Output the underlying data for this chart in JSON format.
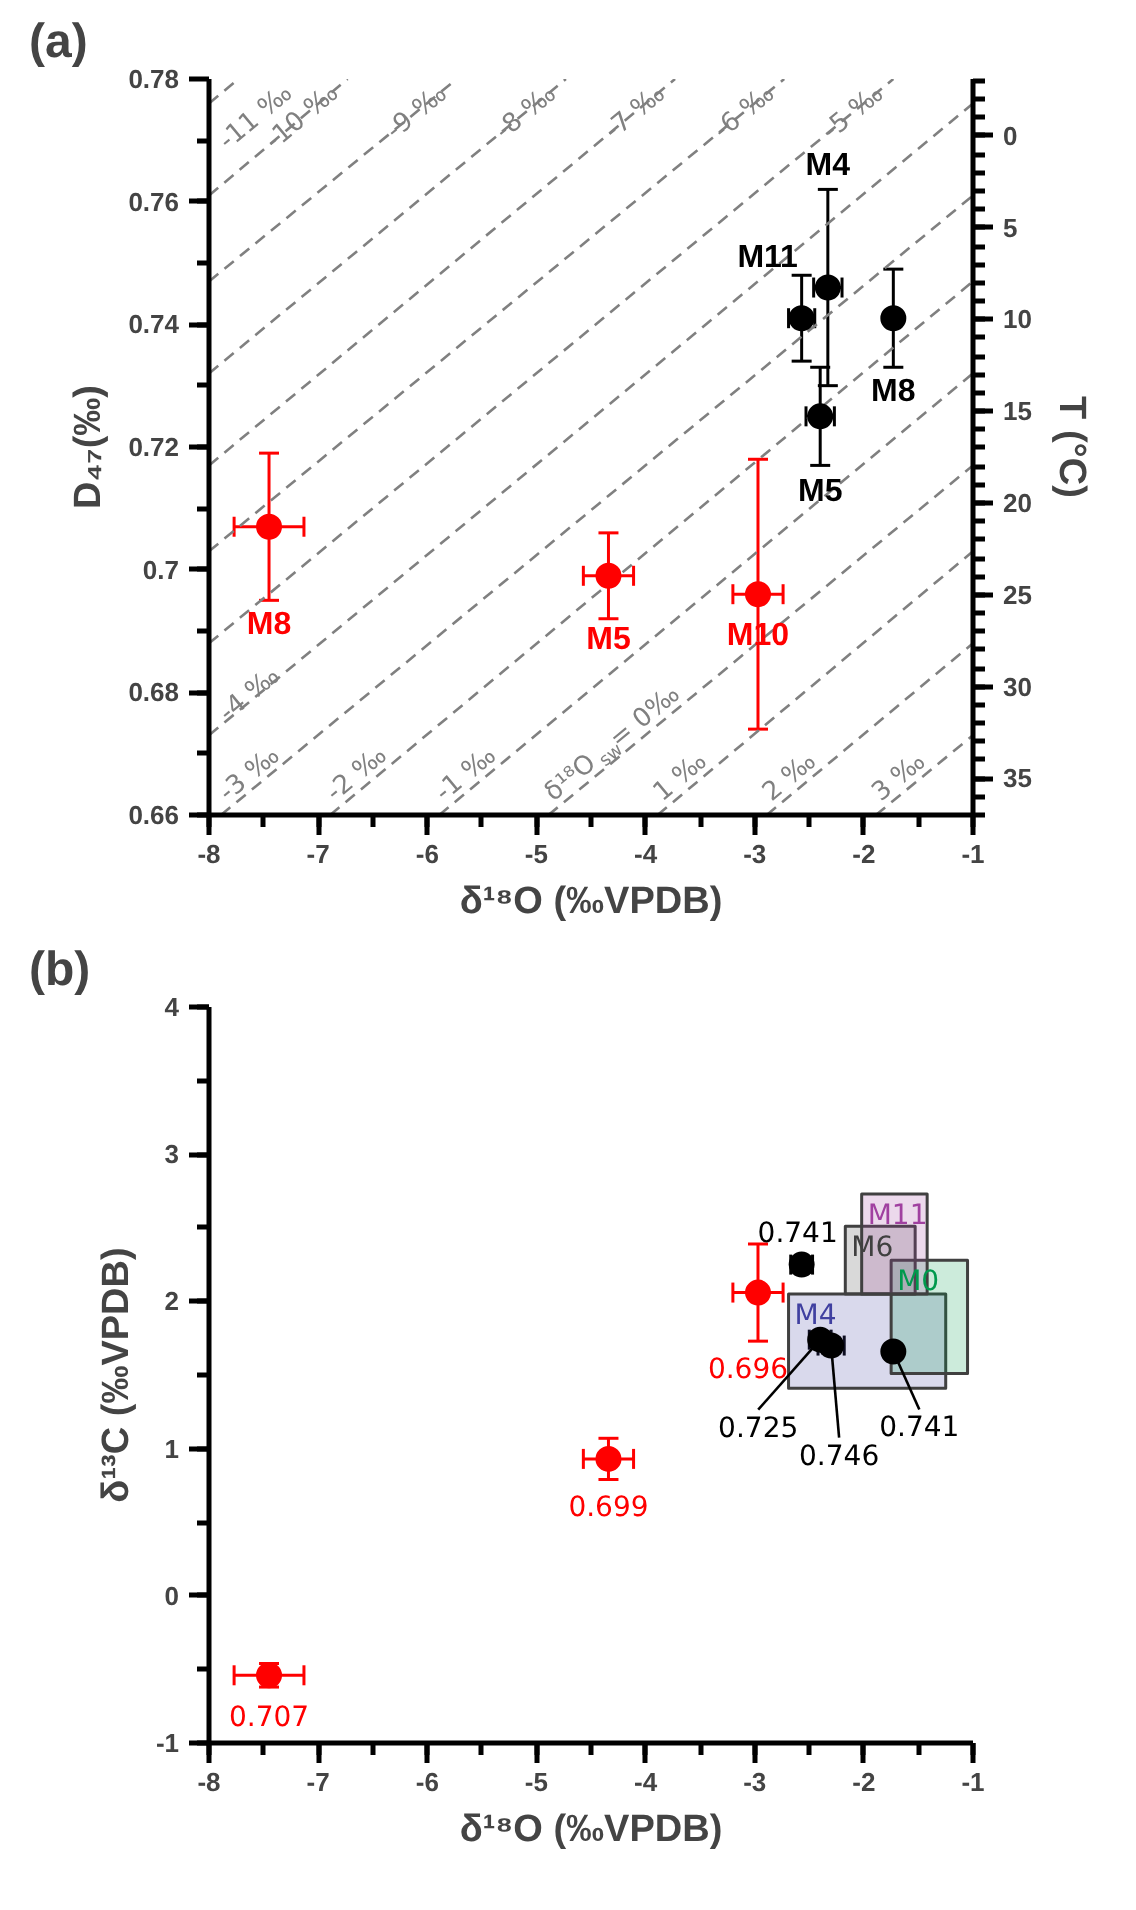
{
  "chart_data": [
    {
      "type": "scatter",
      "title": "(a)",
      "xlabel": "δ¹⁸O (‰VPDB)",
      "ylabel": "D₄₇(‰)",
      "y2label": "T (°C)",
      "xlim": [
        -8,
        -1
      ],
      "xticks": [
        -8,
        -7,
        -6,
        -5,
        -4,
        -3,
        -2,
        -1
      ],
      "ylim": [
        0.66,
        0.78
      ],
      "yticks": [
        0.66,
        0.68,
        0.7,
        0.72,
        0.74,
        0.76,
        0.78
      ],
      "y2lim": [
        37.0,
        -3.1
      ],
      "y2ticks": [
        0,
        5,
        10,
        15,
        20,
        25,
        30,
        35
      ],
      "series": [
        {
          "type": "line",
          "name": "-11 ‰",
          "color": "#808080",
          "line_style": "dashed",
          "x": [
            -8,
            -7.73
          ],
          "values": [
            0.776,
            0.78
          ]
        },
        {
          "type": "line",
          "name": "-10 ‰",
          "color": "#808080",
          "line_style": "dashed",
          "x": [
            -8,
            -6.73
          ],
          "values": [
            0.761,
            0.78
          ]
        },
        {
          "type": "line",
          "name": "-9 ‰",
          "color": "#808080",
          "line_style": "dashed",
          "x": [
            -8,
            -5.73
          ],
          "values": [
            0.747,
            0.78
          ]
        },
        {
          "type": "line",
          "name": "-8 ‰",
          "color": "#808080",
          "line_style": "dashed",
          "x": [
            -8,
            -4.73
          ],
          "values": [
            0.732,
            0.78
          ]
        },
        {
          "type": "line",
          "name": "-7 ‰",
          "color": "#808080",
          "line_style": "dashed",
          "x": [
            -8,
            -3.73
          ],
          "values": [
            0.717,
            0.78
          ]
        },
        {
          "type": "line",
          "name": "-6 ‰",
          "color": "#808080",
          "line_style": "dashed",
          "x": [
            -8,
            -2.73
          ],
          "values": [
            0.703,
            0.78
          ]
        },
        {
          "type": "line",
          "name": "-5 ‰",
          "color": "#808080",
          "line_style": "dashed",
          "x": [
            -8,
            -1.73
          ],
          "values": [
            0.688,
            0.78
          ]
        },
        {
          "type": "line",
          "name": "-4 ‰",
          "color": "#808080",
          "line_style": "dashed",
          "x": [
            -8,
            -1
          ],
          "values": [
            0.673,
            0.776
          ]
        },
        {
          "type": "line",
          "name": "-3 ‰",
          "color": "#808080",
          "line_style": "dashed",
          "x": [
            -7.89,
            -1
          ],
          "values": [
            0.66,
            0.761
          ]
        },
        {
          "type": "line",
          "name": "-2 ‰",
          "color": "#808080",
          "line_style": "dashed",
          "x": [
            -6.89,
            -1
          ],
          "values": [
            0.66,
            0.747
          ]
        },
        {
          "type": "line",
          "name": "-1 ‰",
          "color": "#808080",
          "line_style": "dashed",
          "x": [
            -5.89,
            -1
          ],
          "values": [
            0.66,
            0.732
          ]
        },
        {
          "type": "line",
          "name": "δ¹⁸O$_{sw}$ = 0‰",
          "color": "#808080",
          "line_style": "dashed",
          "x": [
            -4.89,
            -1
          ],
          "values": [
            0.66,
            0.717
          ]
        },
        {
          "type": "line",
          "name": "1 ‰",
          "color": "#808080",
          "line_style": "dashed",
          "x": [
            -3.89,
            -1
          ],
          "values": [
            0.66,
            0.703
          ]
        },
        {
          "type": "line",
          "name": "2 ‰",
          "color": "#808080",
          "line_style": "dashed",
          "x": [
            -2.89,
            -1
          ],
          "values": [
            0.66,
            0.688
          ]
        },
        {
          "type": "line",
          "name": "3 ‰",
          "color": "#808080",
          "line_style": "dashed",
          "x": [
            -1.89,
            -1
          ],
          "values": [
            0.66,
            0.673
          ]
        },
        {
          "type": "scatter",
          "marker": "circle",
          "color": "#000000",
          "x": [
            -2.57,
            -2.33,
            -1.73,
            -2.4
          ],
          "values": [
            0.741,
            0.746,
            0.741,
            0.725
          ],
          "errors": [
            0.007,
            0.016,
            0.008,
            0.008
          ],
          "xerrors": [
            0.12,
            0.13,
            null,
            0.13
          ],
          "value_labels": [
            "M11",
            "M4",
            "M8",
            "M5"
          ]
        },
        {
          "type": "scatter",
          "marker": "circle",
          "color": "#ff0000",
          "x": [
            -7.45,
            -4.34,
            -2.97
          ],
          "values": [
            0.707,
            0.699,
            0.696
          ],
          "errors": [
            0.012,
            0.007,
            0.022
          ],
          "xerrors": [
            0.32,
            0.23,
            0.23
          ],
          "value_labels": [
            "M8",
            "M5",
            "M10"
          ]
        }
      ]
    },
    {
      "type": "scatter",
      "title": "(b)",
      "xlabel": "δ¹⁸O (‰VPDB)",
      "ylabel": "δ¹³C (‰VPDB)",
      "xlim": [
        -8,
        -1
      ],
      "xticks": [
        -8,
        -7,
        -6,
        -5,
        -4,
        -3,
        -2,
        -1
      ],
      "ylim": [
        -1,
        4
      ],
      "yticks": [
        -1,
        0,
        1,
        2,
        3,
        4
      ],
      "annotations": [
        {
          "text": "0.741",
          "x": -2.57,
          "y": 2.25
        },
        {
          "text": "0.725",
          "x": -2.4,
          "y": 1.74
        },
        {
          "text": "0.746",
          "x": -2.3,
          "y": 1.7
        },
        {
          "text": "0.741",
          "x": -1.73,
          "y": 1.66
        },
        {
          "text": "0.696",
          "x": -2.97,
          "y": 2.06
        },
        {
          "text": "0.699",
          "x": -4.34,
          "y": 0.93
        },
        {
          "text": "0.707",
          "x": -7.45,
          "y": -0.54
        }
      ],
      "series": [
        {
          "type": "area",
          "name": "M4",
          "color": "#4040a0",
          "x": [
            -2.69,
            -1.25,
            -1.25,
            -2.69,
            -2.69
          ],
          "values": [
            2.05,
            2.05,
            1.41,
            1.41,
            2.05
          ]
        },
        {
          "type": "area",
          "name": "M0",
          "color": "#00994d",
          "x": [
            -1.75,
            -1.05,
            -1.05,
            -1.75,
            -1.75
          ],
          "values": [
            2.28,
            2.28,
            1.51,
            1.51,
            2.28
          ]
        },
        {
          "type": "area",
          "name": "M6",
          "color": "#404040",
          "x": [
            -2.17,
            -1.53,
            -1.53,
            -2.17,
            -2.17
          ],
          "values": [
            2.51,
            2.51,
            2.05,
            2.05,
            2.51
          ]
        },
        {
          "type": "area",
          "name": "M11",
          "color": "#a040a0",
          "x": [
            -2.02,
            -1.42,
            -1.42,
            -2.02,
            -2.02
          ],
          "values": [
            2.73,
            2.73,
            2.05,
            2.05,
            2.73
          ]
        },
        {
          "type": "scatter",
          "marker": "circle",
          "color": "#000000",
          "x": [
            -2.57,
            -2.4,
            -2.3,
            -1.73
          ],
          "values": [
            2.25,
            1.74,
            1.7,
            1.66
          ],
          "errors": [
            0.05,
            0.05,
            0.05,
            null
          ],
          "xerrors": [
            0.1,
            0.1,
            0.12,
            null
          ]
        },
        {
          "type": "scatter",
          "marker": "circle",
          "color": "#ff0000",
          "x": [
            -2.97,
            -4.34,
            -7.45
          ],
          "values": [
            2.06,
            0.93,
            -0.54
          ],
          "errors": [
            0.33,
            0.14,
            0.08
          ],
          "xerrors": [
            0.23,
            0.23,
            0.32
          ]
        }
      ]
    }
  ]
}
